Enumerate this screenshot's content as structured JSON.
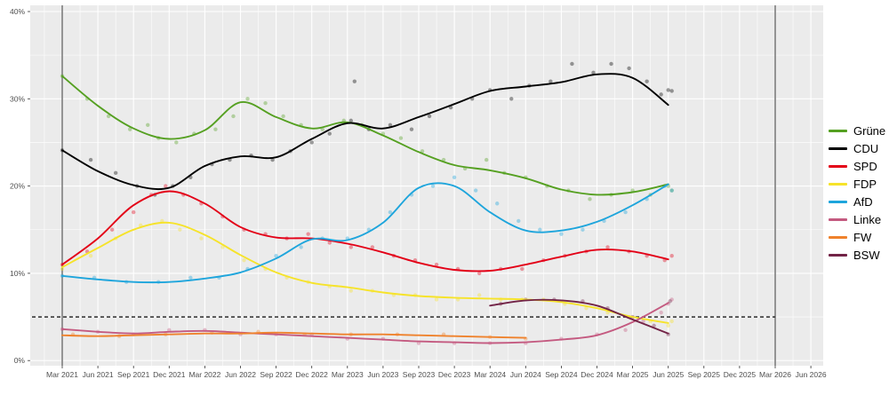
{
  "chart_data": {
    "type": "line+scatter",
    "title": "",
    "x_axis": {
      "labels": [
        "Mar 2021",
        "Jun 2021",
        "Sep 2021",
        "Dec 2021",
        "Mar 2022",
        "Jun 2022",
        "Sep 2022",
        "Dec 2022",
        "Mar 2023",
        "Jun 2023",
        "Sep 2023",
        "Dec 2023",
        "Mar 2024",
        "Jun 2024",
        "Sep 2024",
        "Dec 2024",
        "Mar 2025",
        "Jun 2025",
        "Sep 2025",
        "Dec 2025",
        "Mar 2026",
        "Jun 2026"
      ]
    },
    "y_axis": {
      "labels": [
        "0%",
        "10%",
        "20%",
        "30%",
        "40%"
      ],
      "ticks": [
        0,
        10,
        20,
        30,
        40
      ],
      "range": [
        0,
        40
      ]
    },
    "panel": {
      "bg": "#ebebeb",
      "grid": "#ffffff",
      "axis_text": "#4f4f4f"
    },
    "threshold": {
      "value": 5,
      "style": "dashed",
      "color": "#1a1a1a"
    },
    "election_lines": {
      "x_indices": [
        0,
        20
      ],
      "color": "#7d7d7d"
    },
    "legend_position": "right",
    "series": [
      {
        "name": "Grüne",
        "color": "#55a021",
        "values": [
          32.6,
          29.2,
          26.6,
          25.4,
          26.4,
          29.6,
          27.9,
          26.6,
          27.3,
          25.8,
          23.9,
          22.4,
          21.8,
          20.9,
          19.6,
          19.0,
          19.3,
          20.2,
          null,
          null,
          null,
          null
        ],
        "polls": [
          [
            0,
            32.6
          ],
          [
            0.7,
            30
          ],
          [
            1.3,
            28
          ],
          [
            1.9,
            26.5
          ],
          [
            2.4,
            27
          ],
          [
            2.7,
            25.5
          ],
          [
            3.2,
            25
          ],
          [
            3.7,
            26
          ],
          [
            4.3,
            26.5
          ],
          [
            4.8,
            28
          ],
          [
            5.2,
            30
          ],
          [
            5.7,
            29.5
          ],
          [
            6.2,
            28
          ],
          [
            6.7,
            27
          ],
          [
            7.3,
            26.5
          ],
          [
            7.9,
            27.5
          ],
          [
            8.4,
            27
          ],
          [
            9.0,
            26
          ],
          [
            9.5,
            25.5
          ],
          [
            10.1,
            24
          ],
          [
            10.7,
            23
          ],
          [
            11.3,
            22
          ],
          [
            11.9,
            23
          ],
          [
            12.4,
            21.5
          ],
          [
            13.0,
            21
          ],
          [
            13.6,
            20
          ],
          [
            14.2,
            19.5
          ],
          [
            14.8,
            18.5
          ],
          [
            15.4,
            19
          ],
          [
            16.0,
            19.5
          ],
          [
            16.5,
            19
          ],
          [
            17.0,
            20
          ],
          [
            17.1,
            19.5
          ]
        ]
      },
      {
        "name": "CDU",
        "color": "#000000",
        "values": [
          24.1,
          21.7,
          20.1,
          19.8,
          22.3,
          23.4,
          23.3,
          25.4,
          27.2,
          26.6,
          27.9,
          29.4,
          30.9,
          31.4,
          31.9,
          32.8,
          32.4,
          29.3,
          null,
          null,
          null,
          null
        ],
        "polls": [
          [
            0,
            24.1
          ],
          [
            0.8,
            23
          ],
          [
            1.5,
            21.5
          ],
          [
            2.1,
            20
          ],
          [
            2.6,
            19
          ],
          [
            3.1,
            20
          ],
          [
            3.6,
            21
          ],
          [
            4.2,
            22.5
          ],
          [
            4.7,
            23
          ],
          [
            5.3,
            23.5
          ],
          [
            5.9,
            23
          ],
          [
            6.4,
            24
          ],
          [
            7.0,
            25
          ],
          [
            7.5,
            26
          ],
          [
            8.1,
            27.5
          ],
          [
            8.2,
            32
          ],
          [
            8.6,
            26.5
          ],
          [
            9.2,
            27
          ],
          [
            9.8,
            26.5
          ],
          [
            10.3,
            28
          ],
          [
            10.9,
            29
          ],
          [
            11.5,
            30
          ],
          [
            12.0,
            31
          ],
          [
            12.6,
            30
          ],
          [
            13.1,
            31.5
          ],
          [
            13.7,
            32
          ],
          [
            14.3,
            34
          ],
          [
            14.9,
            33
          ],
          [
            15.4,
            34
          ],
          [
            15.9,
            33.5
          ],
          [
            16.4,
            32
          ],
          [
            16.8,
            30.5
          ],
          [
            17.0,
            31
          ],
          [
            17.1,
            30.9
          ]
        ]
      },
      {
        "name": "SPD",
        "color": "#e30017",
        "values": [
          11.0,
          14.0,
          17.8,
          19.4,
          18.0,
          15.3,
          14.1,
          14.0,
          13.4,
          12.4,
          11.2,
          10.4,
          10.3,
          11.0,
          11.9,
          12.7,
          12.5,
          11.6,
          null,
          null,
          null,
          null
        ],
        "polls": [
          [
            0,
            11
          ],
          [
            0.7,
            12.5
          ],
          [
            1.4,
            15
          ],
          [
            2.0,
            17
          ],
          [
            2.5,
            19
          ],
          [
            2.9,
            20
          ],
          [
            3.4,
            19
          ],
          [
            3.9,
            18
          ],
          [
            4.5,
            16.5
          ],
          [
            5.1,
            15
          ],
          [
            5.7,
            14.5
          ],
          [
            6.3,
            14
          ],
          [
            6.9,
            14.5
          ],
          [
            7.5,
            13.5
          ],
          [
            8.1,
            13
          ],
          [
            8.7,
            13
          ],
          [
            9.3,
            12
          ],
          [
            9.9,
            11.5
          ],
          [
            10.5,
            11
          ],
          [
            11.1,
            10.5
          ],
          [
            11.7,
            10
          ],
          [
            12.3,
            10.5
          ],
          [
            12.9,
            10.5
          ],
          [
            13.5,
            11.5
          ],
          [
            14.1,
            12
          ],
          [
            14.7,
            12.5
          ],
          [
            15.3,
            13
          ],
          [
            15.9,
            12.5
          ],
          [
            16.4,
            12
          ],
          [
            16.9,
            11.5
          ],
          [
            17.1,
            12
          ]
        ]
      },
      {
        "name": "FDP",
        "color": "#f6e32a",
        "values": [
          10.7,
          12.9,
          15.0,
          15.8,
          14.4,
          12.1,
          10.1,
          8.9,
          8.4,
          7.8,
          7.4,
          7.2,
          7.1,
          7.0,
          6.7,
          6.0,
          5.0,
          4.3,
          null,
          null,
          null,
          null
        ],
        "polls": [
          [
            0,
            10.5
          ],
          [
            0.8,
            12
          ],
          [
            1.5,
            14
          ],
          [
            2.2,
            15.5
          ],
          [
            2.8,
            16
          ],
          [
            3.3,
            15
          ],
          [
            3.9,
            14
          ],
          [
            4.5,
            13
          ],
          [
            5.1,
            11.5
          ],
          [
            5.7,
            10.5
          ],
          [
            6.3,
            9.5
          ],
          [
            6.9,
            9
          ],
          [
            7.5,
            8.5
          ],
          [
            8.1,
            8
          ],
          [
            8.7,
            8
          ],
          [
            9.3,
            7.5
          ],
          [
            9.9,
            7.5
          ],
          [
            10.5,
            7
          ],
          [
            11.1,
            7
          ],
          [
            11.7,
            7.5
          ],
          [
            12.3,
            7
          ],
          [
            12.9,
            7
          ],
          [
            13.5,
            7
          ],
          [
            14.1,
            6.5
          ],
          [
            14.7,
            6
          ],
          [
            15.3,
            5.5
          ],
          [
            15.9,
            5
          ],
          [
            16.5,
            4.5
          ],
          [
            17.0,
            4
          ],
          [
            17.1,
            4.5
          ]
        ]
      },
      {
        "name": "AfD",
        "color": "#1ea5dc",
        "values": [
          9.7,
          9.3,
          9.0,
          9.0,
          9.4,
          10.1,
          11.7,
          13.9,
          13.8,
          15.8,
          19.8,
          20.0,
          17.0,
          14.9,
          14.9,
          15.9,
          17.8,
          20.2,
          null,
          null,
          null,
          null
        ],
        "polls": [
          [
            0,
            9.7
          ],
          [
            0.9,
            9.5
          ],
          [
            1.8,
            9
          ],
          [
            2.7,
            9
          ],
          [
            3.6,
            9.5
          ],
          [
            4.4,
            9.5
          ],
          [
            5.2,
            10.5
          ],
          [
            6.0,
            12
          ],
          [
            6.7,
            13
          ],
          [
            7.3,
            14
          ],
          [
            8.0,
            14
          ],
          [
            8.6,
            15
          ],
          [
            9.2,
            17
          ],
          [
            9.8,
            19
          ],
          [
            10.4,
            20
          ],
          [
            11.0,
            21
          ],
          [
            11.6,
            19.5
          ],
          [
            12.2,
            18
          ],
          [
            12.8,
            16
          ],
          [
            13.4,
            15
          ],
          [
            14.0,
            14.5
          ],
          [
            14.6,
            15
          ],
          [
            15.2,
            16
          ],
          [
            15.8,
            17
          ],
          [
            16.4,
            18.5
          ],
          [
            16.9,
            20
          ],
          [
            17.1,
            19.5
          ]
        ]
      },
      {
        "name": "Linke",
        "color": "#c45a80",
        "values": [
          3.6,
          3.3,
          3.1,
          3.3,
          3.4,
          3.2,
          3.0,
          2.8,
          2.6,
          2.4,
          2.2,
          2.1,
          2.0,
          2.1,
          2.4,
          2.9,
          4.4,
          6.6,
          null,
          null,
          null,
          null
        ],
        "polls": [
          [
            0,
            3.6
          ],
          [
            1.0,
            3.3
          ],
          [
            2.0,
            3
          ],
          [
            3.0,
            3.5
          ],
          [
            4.0,
            3.5
          ],
          [
            5.0,
            3
          ],
          [
            6.0,
            3
          ],
          [
            7.0,
            3
          ],
          [
            8.0,
            2.5
          ],
          [
            9.0,
            2.5
          ],
          [
            10.0,
            2
          ],
          [
            11.0,
            2
          ],
          [
            12.0,
            2
          ],
          [
            13.0,
            2
          ],
          [
            14.0,
            2.5
          ],
          [
            15.0,
            3
          ],
          [
            15.8,
            3.5
          ],
          [
            16.3,
            4.5
          ],
          [
            16.8,
            5.5
          ],
          [
            17.0,
            6.5
          ],
          [
            17.1,
            7
          ]
        ]
      },
      {
        "name": "FW",
        "color": "#ef822c",
        "values": [
          2.9,
          2.8,
          2.9,
          3.0,
          3.1,
          3.1,
          3.2,
          3.1,
          3.0,
          3.0,
          2.9,
          2.8,
          2.7,
          2.6,
          null,
          null,
          null,
          null,
          null,
          null,
          null,
          null
        ],
        "polls": [
          [
            0.3,
            3
          ],
          [
            1.6,
            2.8
          ],
          [
            2.9,
            3
          ],
          [
            4.2,
            3.2
          ],
          [
            5.5,
            3.3
          ],
          [
            6.8,
            3
          ],
          [
            8.1,
            3
          ],
          [
            9.4,
            3
          ],
          [
            10.7,
            3
          ],
          [
            12.0,
            2.7
          ],
          [
            13.0,
            2.5
          ]
        ]
      },
      {
        "name": "BSW",
        "color": "#722346",
        "values": [
          null,
          null,
          null,
          null,
          null,
          null,
          null,
          null,
          null,
          null,
          null,
          null,
          6.3,
          6.9,
          6.9,
          6.3,
          4.7,
          3.1,
          null,
          null,
          null,
          null
        ],
        "polls": [
          [
            12.3,
            6.5
          ],
          [
            13.0,
            7
          ],
          [
            13.8,
            7
          ],
          [
            14.6,
            6.8
          ],
          [
            15.3,
            6
          ],
          [
            16.0,
            5
          ],
          [
            16.6,
            4
          ],
          [
            17.0,
            3
          ],
          [
            17.05,
            6.8
          ]
        ]
      }
    ]
  }
}
